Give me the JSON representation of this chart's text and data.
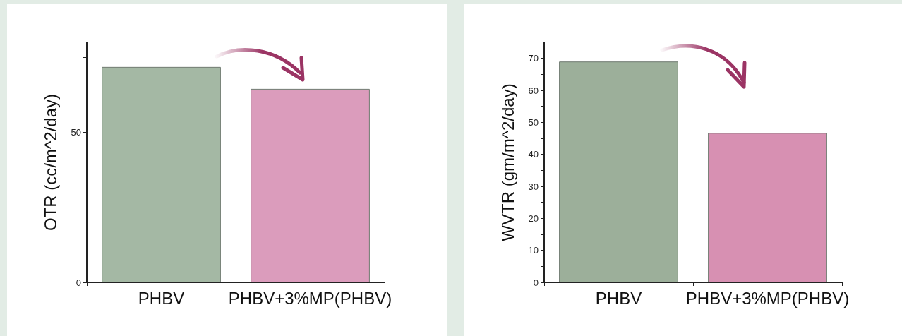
{
  "chart_data": [
    {
      "type": "bar",
      "ylabel": "OTR (cc/m^2/day)",
      "categories": [
        "PHBV",
        "PHBV+3%MP(PHBV)"
      ],
      "colors": [
        "#a4b8a4",
        "#db9cbc"
      ],
      "values": [
        71.8,
        64.5
      ],
      "ylim": [
        0,
        80
      ],
      "yticks": [
        0,
        {
          "value": 25,
          "label": null
        },
        50,
        {
          "value": 75,
          "label": null
        }
      ],
      "grid": false
    },
    {
      "type": "bar",
      "ylabel": "WVTR (gm/m^2/day)",
      "categories": [
        "PHBV",
        "PHBV+3%MP(PHBV)"
      ],
      "colors": [
        "#9caf9a",
        "#d790b2"
      ],
      "values": [
        69.0,
        46.7
      ],
      "ylim": [
        0,
        75
      ],
      "yticks": [
        0,
        {
          "value": 5,
          "label": null
        },
        10,
        {
          "value": 15,
          "label": null
        },
        20,
        {
          "value": 25,
          "label": null
        },
        30,
        {
          "value": 35,
          "label": null
        },
        40,
        {
          "value": 45,
          "label": null
        },
        50,
        {
          "value": 55,
          "label": null
        },
        60,
        {
          "value": 65,
          "label": null
        },
        70
      ],
      "grid": false
    }
  ]
}
